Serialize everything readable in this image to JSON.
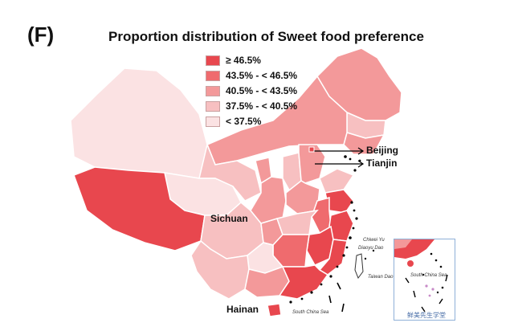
{
  "panel_label": "(F)",
  "title": "Proportion distribution of Sweet food preference",
  "legend": [
    {
      "label": "≥ 46.5%",
      "color": "#e8474e"
    },
    {
      "label": "43.5% - < 46.5%",
      "color": "#ef6b6e"
    },
    {
      "label": "40.5% - < 43.5%",
      "color": "#f3999a"
    },
    {
      "label": "37.5% - < 40.5%",
      "color": "#f7c0c1"
    },
    {
      "label": "< 37.5%",
      "color": "#fbe2e3"
    }
  ],
  "place_labels": {
    "beijing": "Beijing",
    "tianjin": "Tianjin",
    "sichuan": "Sichuan",
    "hainan": "Hainan"
  },
  "map_annotations": {
    "chiwei_yu": "Chiwei Yu",
    "diaoyu_dao": "Diaoyu Dao",
    "taiwan_dao": "Taiwan Dao",
    "south_china_sea": "South China Sea",
    "inset_south_china_sea": "South China Sea"
  },
  "watermark": "鲜美先生学堂"
}
